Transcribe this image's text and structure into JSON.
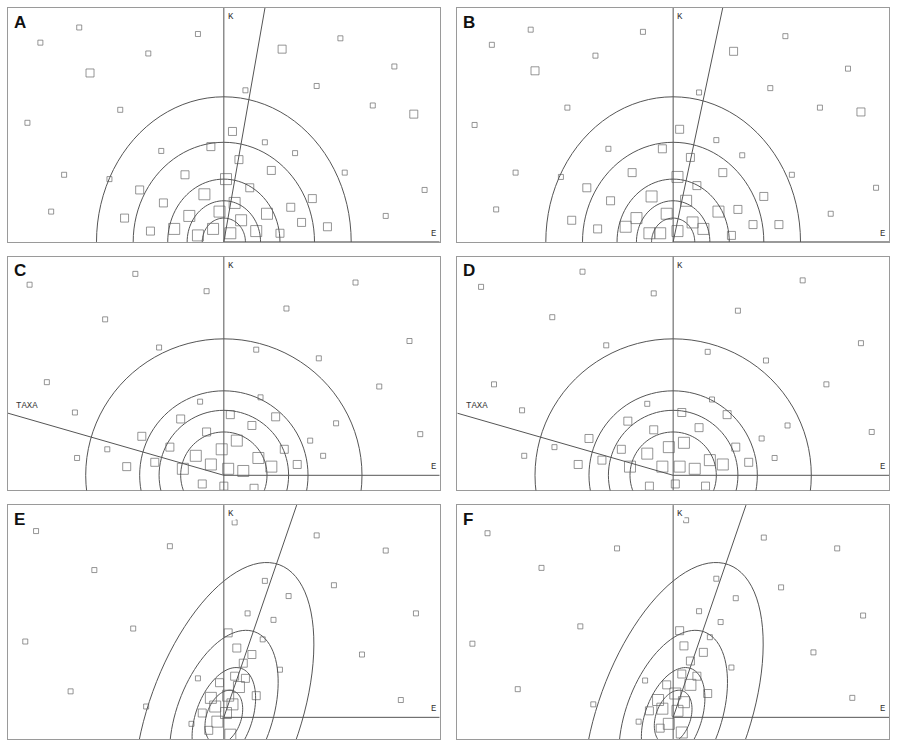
{
  "chart_data": [
    {
      "type": "scatter",
      "title": "A",
      "marker": "square-open",
      "color": "#6a6a6a",
      "tick_labels": false,
      "xlim": [
        -10,
        10
      ],
      "ylim": [
        0,
        10.8
      ],
      "x_label": "E",
      "y_label": "K",
      "circles": [
        {
          "rx": 1.0,
          "ry": 1.1,
          "angle": 0
        },
        {
          "rx": 1.7,
          "ry": 1.9,
          "angle": 0
        },
        {
          "rx": 2.6,
          "ry": 2.9,
          "angle": 0
        },
        {
          "rx": 4.2,
          "ry": 4.6,
          "angle": 0
        },
        {
          "rx": 5.9,
          "ry": 6.7,
          "angle": 0
        }
      ],
      "rays": [
        {
          "angle": 80
        }
      ],
      "x": [
        0.3,
        -0.5,
        0.8,
        -1.2,
        1.5,
        -0.2,
        0.5,
        -1.6,
        2.0,
        -2.3,
        2.6,
        -0.9,
        1.2,
        -2.8,
        3.1,
        0.1,
        -3.4,
        3.6,
        -1.8,
        2.2,
        0.7,
        -3.9,
        4.1,
        -0.6,
        1.9,
        -4.6,
        4.8,
        -2.9,
        3.3,
        0.4,
        -5.3,
        5.6,
        -8.5,
        -6.2,
        -9.1,
        -7.4,
        -3.5,
        -1.2,
        2.7,
        5.4,
        7.9,
        8.8,
        6.9,
        9.3,
        7.5,
        -8.0,
        4.3,
        -4.8,
        1.0,
        -6.7
      ],
      "y": [
        0.4,
        0.6,
        1.0,
        0.3,
        0.5,
        1.4,
        1.8,
        1.2,
        1.3,
        0.6,
        0.4,
        2.2,
        2.5,
        1.8,
        1.6,
        2.9,
        0.5,
        0.9,
        3.1,
        3.3,
        3.8,
        2.4,
        2.0,
        4.4,
        4.6,
        1.1,
        0.7,
        4.2,
        4.1,
        5.1,
        2.9,
        3.2,
        9.2,
        7.8,
        5.5,
        3.1,
        8.7,
        9.6,
        8.9,
        9.4,
        8.1,
        5.9,
        6.3,
        2.4,
        1.2,
        1.4,
        7.2,
        6.1,
        7.0,
        9.9
      ],
      "size": [
        3,
        3,
        3,
        3,
        3,
        3,
        3,
        3,
        3,
        3,
        2,
        3,
        2,
        2,
        2,
        3,
        2,
        2,
        2,
        2,
        2,
        2,
        2,
        2,
        1,
        2,
        2,
        1,
        1,
        2,
        1,
        1,
        1,
        2,
        1,
        1,
        1,
        1,
        2,
        1,
        1,
        2,
        1,
        1,
        1,
        1,
        1,
        1,
        1,
        1
      ]
    },
    {
      "type": "scatter",
      "title": "B",
      "marker": "square-open",
      "color": "#6a6a6a",
      "tick_labels": false,
      "xlim": [
        -10,
        10
      ],
      "ylim": [
        0,
        10.8
      ],
      "x_label": "E",
      "y_label": "K",
      "circles": [
        {
          "rx": 1.0,
          "ry": 1.1,
          "angle": 0
        },
        {
          "rx": 1.7,
          "ry": 1.9,
          "angle": 0
        },
        {
          "rx": 2.6,
          "ry": 2.9,
          "angle": 0
        },
        {
          "rx": 4.2,
          "ry": 4.6,
          "angle": 0
        },
        {
          "rx": 5.9,
          "ry": 6.7,
          "angle": 0
        }
      ],
      "rays": [
        {
          "angle": 78
        }
      ],
      "x": [
        0.2,
        -0.6,
        0.9,
        -1.1,
        1.4,
        -0.3,
        0.6,
        -1.7,
        2.1,
        -2.2,
        2.7,
        -1.0,
        1.1,
        -2.9,
        3.0,
        0.2,
        -3.5,
        3.7,
        -1.9,
        2.3,
        0.8,
        -4.0,
        4.2,
        -0.5,
        2.0,
        -4.7,
        4.9,
        -3.0,
        3.2,
        0.3,
        -5.2,
        5.5,
        -8.4,
        -6.4,
        -9.2,
        -7.3,
        -3.6,
        -1.4,
        2.8,
        5.2,
        8.1,
        8.7,
        6.8,
        9.4,
        7.3,
        -8.2,
        4.5,
        -4.9,
        1.2,
        -6.6
      ],
      "y": [
        0.5,
        0.4,
        0.9,
        0.4,
        0.6,
        1.3,
        1.9,
        1.1,
        1.4,
        0.7,
        0.3,
        2.1,
        2.6,
        1.9,
        1.5,
        3.0,
        0.6,
        0.8,
        3.2,
        3.2,
        3.9,
        2.5,
        2.1,
        4.3,
        4.7,
        1.0,
        0.8,
        4.3,
        4.0,
        5.2,
        3.0,
        3.1,
        9.1,
        7.9,
        5.4,
        3.2,
        8.6,
        9.7,
        8.8,
        9.5,
        8.0,
        6.0,
        6.2,
        2.5,
        1.3,
        1.5,
        7.1,
        6.2,
        6.9,
        9.8
      ],
      "size": [
        3,
        3,
        3,
        3,
        3,
        3,
        3,
        3,
        3,
        3,
        2,
        3,
        2,
        2,
        2,
        3,
        2,
        2,
        2,
        2,
        2,
        2,
        2,
        2,
        1,
        2,
        2,
        1,
        1,
        2,
        1,
        1,
        1,
        2,
        1,
        1,
        1,
        1,
        2,
        1,
        1,
        2,
        1,
        1,
        1,
        1,
        1,
        1,
        1,
        1
      ]
    },
    {
      "type": "scatter",
      "title": "C",
      "marker": "square-open",
      "color": "#6a6a6a",
      "tick_labels": false,
      "xlim": [
        -10,
        10
      ],
      "ylim": [
        -0.7,
        10.1
      ],
      "x_label": "E",
      "y_label": "K",
      "circles": [
        {
          "rx": 2.0,
          "ry": 2.0,
          "angle": 0
        },
        {
          "rx": 3.0,
          "ry": 3.0,
          "angle": 0
        },
        {
          "rx": 3.9,
          "ry": 3.9,
          "angle": 0
        },
        {
          "rx": 6.4,
          "ry": 6.3,
          "angle": 0
        }
      ],
      "rays": [
        {
          "angle": 164,
          "label": "TAXA"
        }
      ],
      "x": [
        0.2,
        -0.6,
        0.9,
        -1.3,
        1.6,
        -0.1,
        0.6,
        -1.9,
        2.2,
        -2.5,
        2.8,
        -0.8,
        1.3,
        -3.2,
        3.4,
        0.3,
        -2.0,
        2.4,
        -3.8,
        4.0,
        -4.5,
        4.6,
        -1.1,
        1.7,
        -5.4,
        5.2,
        -6.8,
        0.0,
        -1.0,
        1.4,
        -9.0,
        -5.5,
        -8.2,
        -3.0,
        -0.8,
        2.9,
        6.1,
        8.6,
        7.2,
        9.1,
        4.4,
        -6.9,
        1.5,
        -4.1
      ],
      "y": [
        0.3,
        0.5,
        0.2,
        0.9,
        0.8,
        1.2,
        1.6,
        0.3,
        0.4,
        1.3,
        1.2,
        2.0,
        2.3,
        0.6,
        0.5,
        2.8,
        2.6,
        2.7,
        1.8,
        1.6,
        0.4,
        0.9,
        3.4,
        3.6,
        1.2,
        2.4,
        0.8,
        -0.5,
        -0.4,
        -0.6,
        8.8,
        7.2,
        4.3,
        5.9,
        8.5,
        7.7,
        8.9,
        6.2,
        4.1,
        1.9,
        5.4,
        2.9,
        5.8,
        9.3
      ],
      "size": [
        3,
        3,
        3,
        3,
        3,
        3,
        3,
        3,
        3,
        2,
        2,
        2,
        2,
        2,
        2,
        2,
        2,
        2,
        2,
        1,
        2,
        1,
        1,
        1,
        1,
        1,
        1,
        2,
        2,
        2,
        1,
        1,
        1,
        1,
        1,
        1,
        1,
        1,
        1,
        1,
        1,
        1,
        1,
        1
      ]
    },
    {
      "type": "scatter",
      "title": "D",
      "marker": "square-open",
      "color": "#6a6a6a",
      "tick_labels": false,
      "xlim": [
        -10,
        10
      ],
      "ylim": [
        -0.7,
        10.1
      ],
      "x_label": "E",
      "y_label": "K",
      "circles": [
        {
          "rx": 2.0,
          "ry": 2.0,
          "angle": 0
        },
        {
          "rx": 3.0,
          "ry": 3.0,
          "angle": 0
        },
        {
          "rx": 3.9,
          "ry": 3.9,
          "angle": 0
        },
        {
          "rx": 6.4,
          "ry": 6.3,
          "angle": 0
        }
      ],
      "rays": [
        {
          "angle": 164,
          "label": "TAXA"
        }
      ],
      "x": [
        0.3,
        -0.5,
        1.0,
        -1.2,
        1.7,
        -0.2,
        0.5,
        -2.0,
        2.3,
        -2.4,
        2.9,
        -0.9,
        1.2,
        -3.3,
        3.5,
        0.4,
        -2.1,
        2.5,
        -3.9,
        4.1,
        -4.4,
        4.7,
        -1.2,
        1.8,
        -5.5,
        5.3,
        -6.9,
        0.1,
        -1.1,
        1.5,
        -8.9,
        -5.6,
        -8.3,
        -3.1,
        -0.9,
        3.0,
        6.0,
        8.7,
        7.1,
        9.2,
        4.3,
        -7.0,
        1.6,
        -4.2
      ],
      "y": [
        0.4,
        0.4,
        0.3,
        1.0,
        0.7,
        1.3,
        1.5,
        0.4,
        0.5,
        1.2,
        1.3,
        2.1,
        2.2,
        0.7,
        0.6,
        2.9,
        2.5,
        2.8,
        1.7,
        1.7,
        0.5,
        0.8,
        3.3,
        3.5,
        1.3,
        2.3,
        0.9,
        -0.4,
        -0.5,
        -0.5,
        8.7,
        7.3,
        4.2,
        6.0,
        8.4,
        7.6,
        9.0,
        6.1,
        4.2,
        2.0,
        5.3,
        3.0,
        5.7,
        9.4
      ],
      "size": [
        3,
        3,
        3,
        3,
        3,
        3,
        3,
        3,
        3,
        2,
        2,
        2,
        2,
        2,
        2,
        2,
        2,
        2,
        2,
        1,
        2,
        1,
        1,
        1,
        1,
        1,
        1,
        2,
        2,
        2,
        1,
        1,
        1,
        1,
        1,
        1,
        1,
        1,
        1,
        1,
        1,
        1,
        1,
        1
      ]
    },
    {
      "type": "scatter",
      "title": "E",
      "marker": "square-open",
      "color": "#6a6a6a",
      "tick_labels": false,
      "xlim": [
        -10,
        10
      ],
      "ylim": [
        -1,
        9.8
      ],
      "x_label": "E",
      "y_label": "K",
      "circles": [
        {
          "rx": 1.3,
          "ry": 0.8,
          "angle": 70
        },
        {
          "rx": 2.4,
          "ry": 1.3,
          "angle": 70
        },
        {
          "rx": 4.2,
          "ry": 2.2,
          "angle": 70
        },
        {
          "rx": 7.5,
          "ry": 3.5,
          "angle": 70
        }
      ],
      "rays": [
        {
          "angle": 71
        }
      ],
      "x": [
        0.1,
        -0.3,
        0.4,
        0.2,
        -0.4,
        0.7,
        0.5,
        -0.6,
        1.0,
        0.9,
        -0.2,
        0.3,
        -0.7,
        1.3,
        0.6,
        -1.0,
        1.5,
        1.8,
        0.2,
        -1.2,
        2.3,
        1.1,
        2.6,
        -1.5,
        3.0,
        1.9,
        -8.7,
        -6.0,
        -9.2,
        -4.2,
        -2.5,
        0.5,
        4.3,
        7.5,
        8.9,
        6.4,
        5.1,
        -7.1,
        8.2,
        -3.6
      ],
      "y": [
        0.2,
        -0.2,
        0.6,
        1.0,
        0.5,
        1.4,
        1.9,
        0.9,
        1.8,
        2.5,
        1.6,
        -0.8,
        -0.6,
        2.9,
        3.2,
        0.2,
        1.0,
        3.6,
        3.9,
        1.8,
        4.5,
        4.8,
        2.2,
        -0.3,
        5.6,
        6.3,
        8.6,
        6.8,
        3.5,
        4.1,
        7.9,
        9.0,
        8.4,
        7.7,
        4.8,
        2.9,
        6.1,
        1.2,
        0.8,
        0.5
      ],
      "size": [
        3,
        3,
        3,
        3,
        3,
        3,
        2,
        3,
        2,
        2,
        2,
        3,
        2,
        2,
        2,
        2,
        2,
        1,
        2,
        1,
        1,
        1,
        1,
        1,
        1,
        1,
        1,
        1,
        1,
        1,
        1,
        1,
        1,
        1,
        1,
        1,
        1,
        1,
        1,
        1
      ]
    },
    {
      "type": "scatter",
      "title": "F",
      "marker": "square-open",
      "color": "#6a6a6a",
      "tick_labels": false,
      "xlim": [
        -10,
        10
      ],
      "ylim": [
        -1,
        9.8
      ],
      "x_label": "E",
      "y_label": "K",
      "circles": [
        {
          "rx": 1.3,
          "ry": 0.8,
          "angle": 70
        },
        {
          "rx": 2.4,
          "ry": 1.3,
          "angle": 70
        },
        {
          "rx": 4.2,
          "ry": 2.2,
          "angle": 70
        },
        {
          "rx": 7.5,
          "ry": 3.5,
          "angle": 70
        }
      ],
      "rays": [
        {
          "angle": 71
        }
      ],
      "x": [
        0.2,
        -0.2,
        0.5,
        0.1,
        -0.5,
        0.8,
        0.4,
        -0.7,
        1.1,
        0.8,
        -0.3,
        0.4,
        -0.6,
        1.4,
        0.5,
        -1.1,
        1.6,
        1.7,
        0.3,
        -1.3,
        2.2,
        1.2,
        2.7,
        -1.6,
        2.9,
        2.0,
        -8.6,
        -6.1,
        -9.3,
        -4.3,
        -2.6,
        0.6,
        4.2,
        7.6,
        8.8,
        6.5,
        5.0,
        -7.2,
        8.3,
        -3.7
      ],
      "y": [
        0.3,
        -0.3,
        0.7,
        1.1,
        0.4,
        1.5,
        2.0,
        0.8,
        1.9,
        2.6,
        1.5,
        -0.7,
        -0.5,
        3.0,
        3.3,
        0.3,
        1.1,
        3.7,
        4.0,
        1.7,
        4.4,
        4.9,
        2.3,
        -0.2,
        5.5,
        6.4,
        8.5,
        6.9,
        3.4,
        4.2,
        7.8,
        9.1,
        8.3,
        7.8,
        4.7,
        3.0,
        6.0,
        1.3,
        0.9,
        0.6
      ],
      "size": [
        3,
        3,
        3,
        3,
        3,
        3,
        2,
        3,
        2,
        2,
        2,
        3,
        2,
        2,
        2,
        2,
        2,
        1,
        2,
        1,
        1,
        1,
        1,
        1,
        1,
        1,
        1,
        1,
        1,
        1,
        1,
        1,
        1,
        1,
        1,
        1,
        1,
        1,
        1,
        1
      ]
    }
  ]
}
